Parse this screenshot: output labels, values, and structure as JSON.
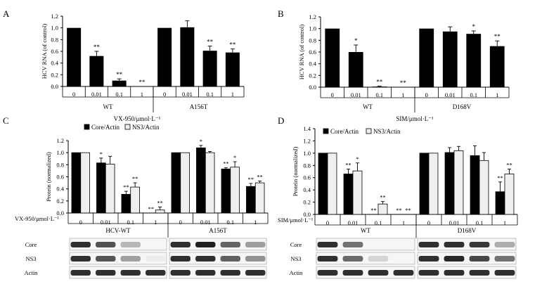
{
  "chart_data": [
    {
      "panel": "A",
      "type": "bar",
      "ylabel": "HCV RNA (of control)",
      "ylim": [
        0,
        1.2
      ],
      "yticks": [
        "0.0",
        "0.2",
        "0.4",
        "0.6",
        "0.8",
        "1.0",
        "1.2"
      ],
      "xaxis_prefix": "",
      "xaxis_title": "VX-950/μmol·L⁻¹",
      "groups": [
        {
          "name": "WT",
          "categories": [
            "0",
            "0.01",
            "0.1",
            "1"
          ],
          "values": [
            1.0,
            0.52,
            0.1,
            0.0
          ],
          "errors": [
            0,
            0.08,
            0.03,
            0
          ],
          "sig": [
            "",
            "**",
            "**",
            "**"
          ]
        },
        {
          "name": "A156T",
          "categories": [
            "0",
            "0.01",
            "0.1",
            "1"
          ],
          "values": [
            1.0,
            1.01,
            0.61,
            0.58
          ],
          "errors": [
            0,
            0.11,
            0.08,
            0.06
          ],
          "sig": [
            "",
            "",
            "**",
            "**"
          ]
        }
      ]
    },
    {
      "panel": "B",
      "type": "bar",
      "ylabel": "HCV RNA (of control)",
      "ylim": [
        0,
        1.2
      ],
      "yticks": [
        "0.0",
        "0.2",
        "0.4",
        "0.6",
        "0.8",
        "1.0",
        "1.2"
      ],
      "xaxis_prefix": "",
      "xaxis_title": "SIM/μmol·L⁻¹",
      "groups": [
        {
          "name": "WT",
          "categories": [
            "0",
            "0.01",
            "0.1",
            "1"
          ],
          "values": [
            1.0,
            0.6,
            0.01,
            0.0
          ],
          "errors": [
            0,
            0.12,
            0.01,
            0
          ],
          "sig": [
            "",
            "*",
            "**",
            "**"
          ]
        },
        {
          "name": "D168V",
          "categories": [
            "0",
            "0.01",
            "0.1",
            "1"
          ],
          "values": [
            1.0,
            0.95,
            0.91,
            0.7
          ],
          "errors": [
            0,
            0.08,
            0.05,
            0.09
          ],
          "sig": [
            "",
            "",
            "*",
            "**"
          ]
        }
      ]
    },
    {
      "panel": "C",
      "type": "bar",
      "ylabel": "Protein (normalized)",
      "ylim": [
        0,
        1.2
      ],
      "yticks": [
        "0.0",
        "0.2",
        "0.4",
        "0.6",
        "0.8",
        "1.0",
        "1.2"
      ],
      "xaxis_prefix": "VX-950/μmol·L⁻¹",
      "xaxis_title": "",
      "legend": [
        "Core/Actin",
        "NS3/Actin"
      ],
      "groups": [
        {
          "name": "HCV-WT",
          "categories": [
            "0",
            "0.01",
            "0.1",
            "1"
          ],
          "series": [
            [
              1.0,
              0.83,
              0.31,
              0.0
            ],
            [
              1.0,
              0.81,
              0.43,
              0.05
            ]
          ],
          "errors": [
            [
              0,
              0.08,
              0.05,
              0
            ],
            [
              0,
              0.13,
              0.07,
              0.05
            ]
          ],
          "sig": [
            [
              "",
              "*",
              "**",
              "**"
            ],
            [
              "",
              "",
              "**",
              "**"
            ]
          ]
        },
        {
          "name": "A156T",
          "categories": [
            "0",
            "0.01",
            "0.1",
            "1"
          ],
          "series": [
            [
              1.0,
              1.08,
              0.73,
              0.44
            ],
            [
              1.0,
              1.0,
              0.76,
              0.5
            ]
          ],
          "errors": [
            [
              0,
              0.04,
              0.02,
              0.05
            ],
            [
              0,
              0.02,
              0.09,
              0.03
            ]
          ],
          "sig": [
            [
              "",
              "*",
              "**",
              "**"
            ],
            [
              "",
              "",
              "*",
              "**"
            ]
          ]
        }
      ],
      "blot_labels": [
        "Core",
        "NS3",
        "Actin"
      ]
    },
    {
      "panel": "D",
      "type": "bar",
      "ylabel": "Protein (normalized)",
      "ylim": [
        0,
        1.4
      ],
      "yticks": [
        "0.0",
        "0.2",
        "0.4",
        "0.6",
        "0.8",
        "1.0",
        "1.2",
        "1.4"
      ],
      "xaxis_prefix": "SIM/μmol·L⁻¹",
      "xaxis_title": "",
      "legend": [
        "Core/Actin",
        "NS3/Actin"
      ],
      "groups": [
        {
          "name": "WT",
          "categories": [
            "0",
            "0.01",
            "0.1",
            "1"
          ],
          "series": [
            [
              1.0,
              0.66,
              0.0,
              0.0
            ],
            [
              1.0,
              0.71,
              0.17,
              0.0
            ]
          ],
          "errors": [
            [
              0,
              0.08,
              0,
              0
            ],
            [
              0,
              0.13,
              0.04,
              0
            ]
          ],
          "sig": [
            [
              "",
              "**",
              "**",
              "**"
            ],
            [
              "",
              "*",
              "**",
              "**"
            ]
          ]
        },
        {
          "name": "D168V",
          "categories": [
            "0",
            "0.01",
            "0.1",
            "1"
          ],
          "series": [
            [
              1.0,
              1.01,
              0.96,
              0.37
            ],
            [
              1.0,
              1.04,
              0.88,
              0.66
            ]
          ],
          "errors": [
            [
              0,
              0.08,
              0.16,
              0.16
            ],
            [
              0,
              0.07,
              0.13,
              0.08
            ]
          ],
          "sig": [
            [
              "",
              "",
              "",
              "**"
            ],
            [
              "",
              "",
              "",
              "**"
            ]
          ]
        }
      ],
      "blot_labels": [
        "Core",
        "NS3",
        "Actin"
      ]
    }
  ]
}
